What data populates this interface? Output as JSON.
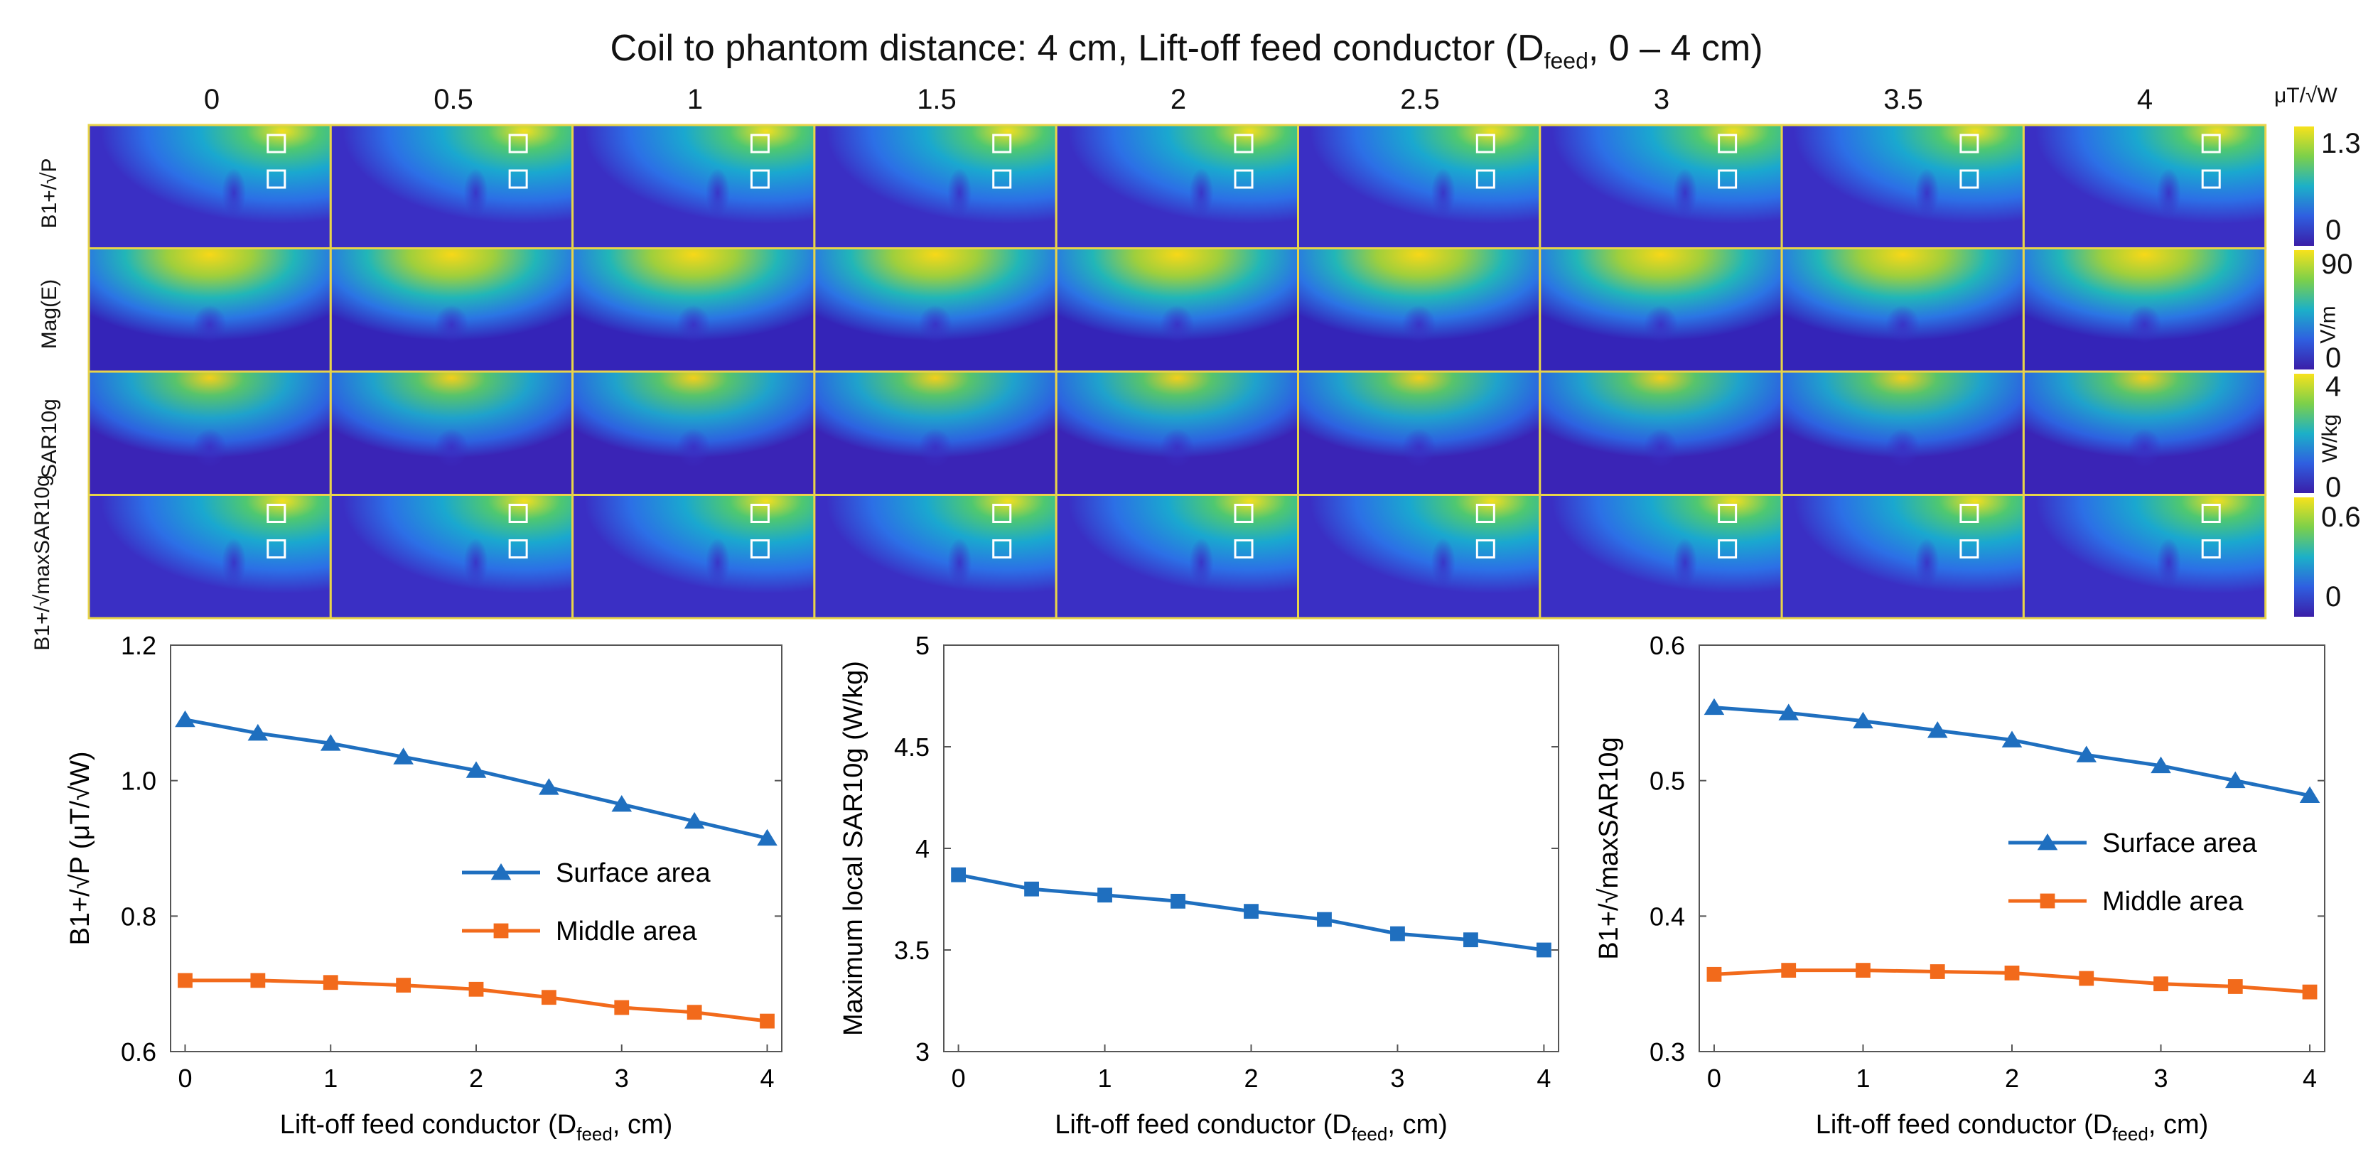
{
  "title": "Coil to phantom distance: 4 cm, Lift-off feed conductor (D",
  "title_sub": "feed",
  "title_tail": ", 0 – 4 cm)",
  "columns": [
    "0",
    "0.5",
    "1",
    "1.5",
    "2",
    "2.5",
    "3",
    "3.5",
    "4"
  ],
  "rows": [
    {
      "label": "B1+/√P",
      "cbar_unit": "μT/√W",
      "cbar_max": "1.3",
      "cbar_min": "0",
      "type": "b1",
      "markers": true
    },
    {
      "label": "Mag(E)",
      "cbar_unit": "V/m",
      "cbar_max": "90",
      "cbar_min": "0",
      "type": "e",
      "markers": false
    },
    {
      "label": "SAR10g",
      "cbar_unit": "W/kg",
      "cbar_max": "4",
      "cbar_min": "0",
      "type": "sar",
      "markers": false
    },
    {
      "label": "B1+/√maxSAR10g",
      "cbar_unit": "",
      "cbar_max": "0.6",
      "cbar_min": "0",
      "type": "b1",
      "markers": true
    }
  ],
  "colors": {
    "blue": "#1f6fbf",
    "orange": "#f26a1b",
    "frame": "#e8d44a"
  },
  "chart_data": [
    {
      "type": "line",
      "xlabel": "Lift-off feed conductor (D",
      "xlabel_sub": "feed",
      "xlabel_tail": ", cm)",
      "ylabel": "B1+/√P (μT/√W)",
      "x": [
        0,
        0.5,
        1,
        1.5,
        2,
        2.5,
        3,
        3.5,
        4
      ],
      "xlim": [
        -0.1,
        4.1
      ],
      "ylim": [
        0.6,
        1.2
      ],
      "xticks": [
        "0",
        "1",
        "2",
        "3",
        "4"
      ],
      "yticks": [
        "0.6",
        "0.8",
        "1.0",
        "1.2"
      ],
      "series": [
        {
          "name": "Surface area",
          "marker": "triangle",
          "color": "#1f6fbf",
          "values": [
            1.09,
            1.07,
            1.055,
            1.035,
            1.015,
            0.99,
            0.965,
            0.94,
            0.915
          ]
        },
        {
          "name": "Middle area",
          "marker": "square",
          "color": "#f26a1b",
          "values": [
            0.705,
            0.705,
            0.702,
            0.698,
            0.692,
            0.68,
            0.665,
            0.658,
            0.645
          ]
        }
      ],
      "legend": "center-right"
    },
    {
      "type": "line",
      "xlabel": "Lift-off feed conductor (D",
      "xlabel_sub": "feed",
      "xlabel_tail": ", cm)",
      "ylabel": "Maximum local SAR10g (W/kg)",
      "x": [
        0,
        0.5,
        1,
        1.5,
        2,
        2.5,
        3,
        3.5,
        4
      ],
      "xlim": [
        -0.1,
        4.1
      ],
      "ylim": [
        3,
        5
      ],
      "xticks": [
        "0",
        "1",
        "2",
        "3",
        "4"
      ],
      "yticks": [
        "3",
        "3.5",
        "4",
        "4.5",
        "5"
      ],
      "series": [
        {
          "name": "",
          "marker": "square",
          "color": "#1f6fbf",
          "values": [
            3.87,
            3.8,
            3.77,
            3.74,
            3.69,
            3.65,
            3.58,
            3.55,
            3.5
          ]
        }
      ],
      "legend": "none"
    },
    {
      "type": "line",
      "xlabel": "Lift-off feed conductor (D",
      "xlabel_sub": "feed",
      "xlabel_tail": ", cm)",
      "ylabel": "B1+/√maxSAR10g",
      "x": [
        0,
        0.5,
        1,
        1.5,
        2,
        2.5,
        3,
        3.5,
        4
      ],
      "xlim": [
        -0.1,
        4.1
      ],
      "ylim": [
        0.3,
        0.6
      ],
      "xticks": [
        "0",
        "1",
        "2",
        "3",
        "4"
      ],
      "yticks": [
        "0.3",
        "0.4",
        "0.5",
        "0.6"
      ],
      "series": [
        {
          "name": "Surface area",
          "marker": "triangle",
          "color": "#1f6fbf",
          "values": [
            0.554,
            0.55,
            0.544,
            0.537,
            0.53,
            0.519,
            0.511,
            0.5,
            0.489
          ]
        },
        {
          "name": "Middle area",
          "marker": "square",
          "color": "#f26a1b",
          "values": [
            0.357,
            0.36,
            0.36,
            0.359,
            0.358,
            0.354,
            0.35,
            0.348,
            0.344
          ]
        }
      ],
      "legend": "center-right"
    }
  ]
}
